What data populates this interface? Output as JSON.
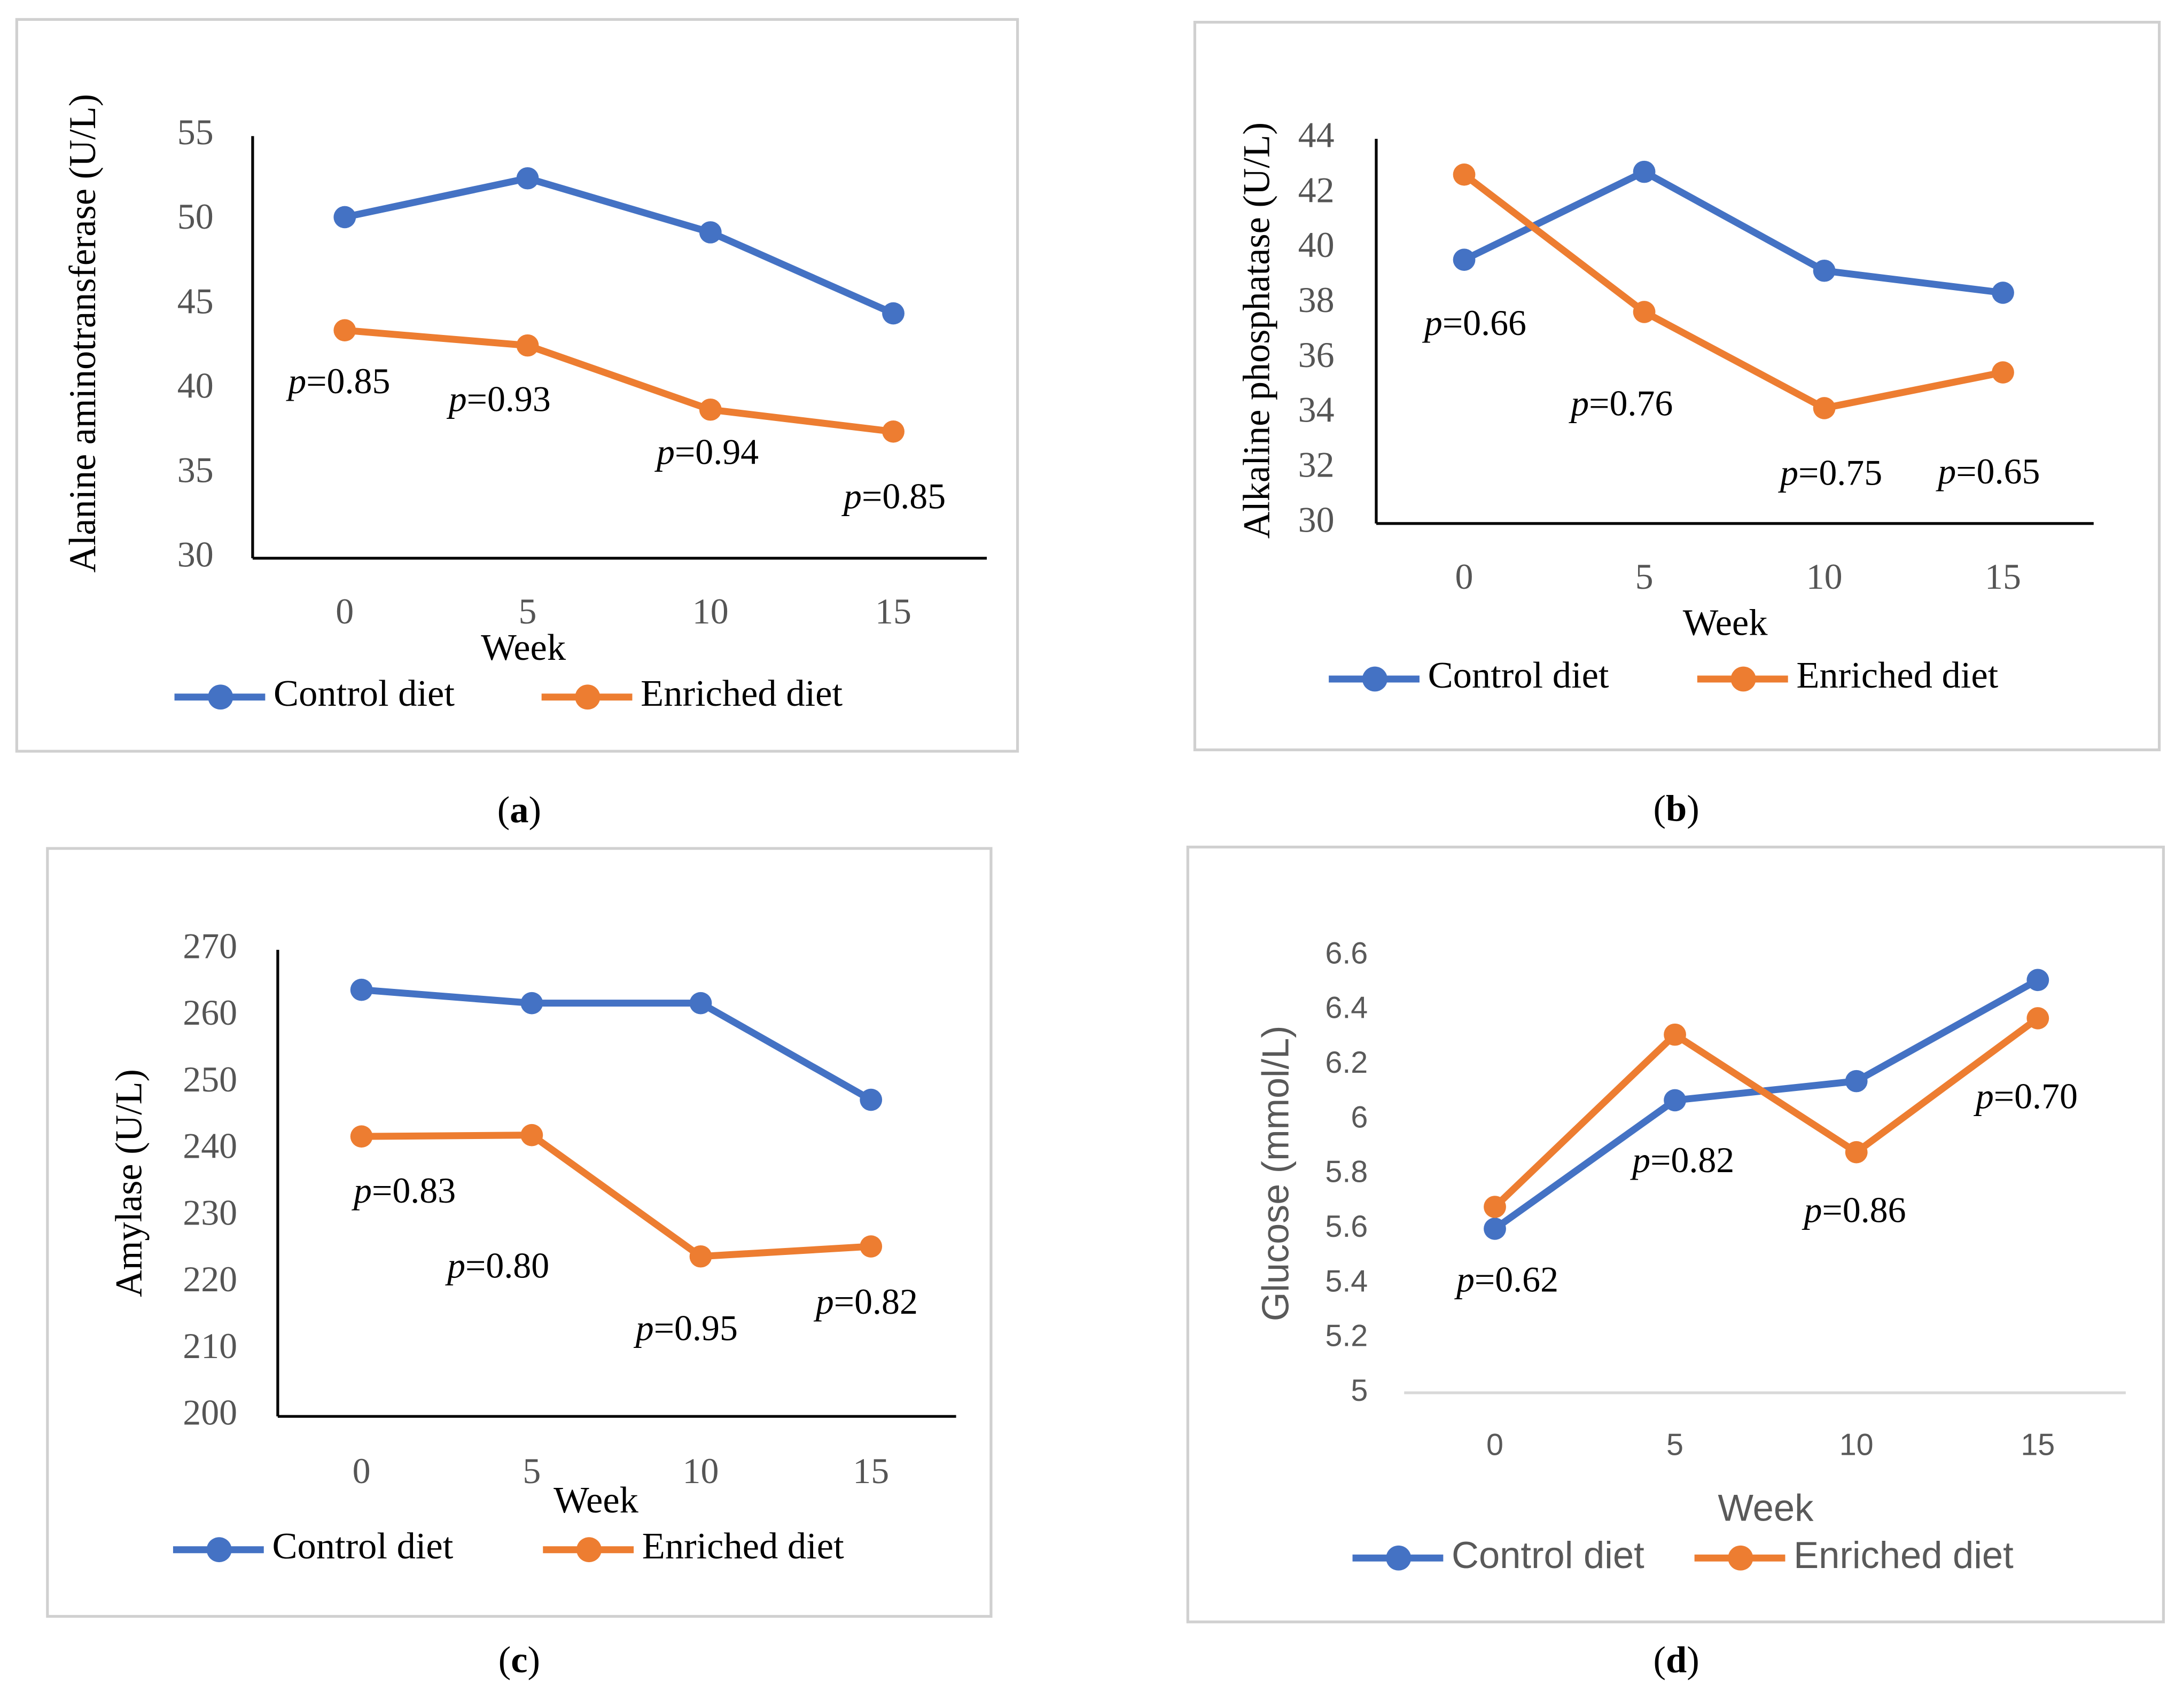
{
  "chart_data": [
    {
      "type": "line",
      "panel_label": "(a)",
      "x_label": "Week",
      "y_label": "Alanine aminotransferase (U/L)",
      "categories": [
        "0",
        "5",
        "10",
        "15"
      ],
      "series": [
        {
          "name": "Control diet",
          "color": "#4472c4",
          "values": [
            50.2,
            52.5,
            49.3,
            44.5
          ]
        },
        {
          "name": "Enriched diet",
          "color": "#ed7d31",
          "values": [
            43.5,
            42.6,
            38.8,
            37.5
          ]
        }
      ],
      "ylim": [
        30,
        55
      ],
      "yticks": [
        30,
        35,
        40,
        45,
        50,
        55
      ],
      "grid": false,
      "legend": "bottom",
      "annotations": [
        "p=0.85",
        "p=0.93",
        "p=0.94",
        "p=0.85"
      ]
    },
    {
      "type": "line",
      "panel_label": "(b)",
      "x_label": "Week",
      "y_label": "Alkaline phosphatase (U/L)",
      "categories": [
        "0",
        "5",
        "10",
        "15"
      ],
      "series": [
        {
          "name": "Control diet",
          "color": "#4472c4",
          "values": [
            39.6,
            42.8,
            39.2,
            38.4
          ]
        },
        {
          "name": "Enriched diet",
          "color": "#ed7d31",
          "values": [
            42.7,
            37.7,
            34.2,
            35.5
          ]
        }
      ],
      "ylim": [
        30,
        44
      ],
      "yticks": [
        30,
        32,
        34,
        36,
        38,
        40,
        42,
        44
      ],
      "grid": false,
      "legend": "bottom",
      "annotations": [
        "p=0.66",
        "p=0.76",
        "p=0.75",
        "p=0.65"
      ]
    },
    {
      "type": "line",
      "panel_label": "(c)",
      "x_label": "Week",
      "y_label": "Amylase (U/L)",
      "categories": [
        "0",
        "5",
        "10",
        "15"
      ],
      "series": [
        {
          "name": "Control diet",
          "color": "#4472c4",
          "values": [
            264,
            262,
            262,
            247.5
          ]
        },
        {
          "name": "Enriched diet",
          "color": "#ed7d31",
          "values": [
            242,
            242.2,
            224,
            225.5
          ]
        }
      ],
      "ylim": [
        200,
        270
      ],
      "yticks": [
        200,
        210,
        220,
        230,
        240,
        250,
        260,
        270
      ],
      "grid": false,
      "legend": "bottom",
      "annotations": [
        "p=0.83",
        "p=0.80",
        "p=0.95",
        "p=0.82"
      ]
    },
    {
      "type": "line",
      "panel_label": "(d)",
      "x_label": "Week",
      "y_label": "Glucose (mmol/L)",
      "categories": [
        "0",
        "5",
        "10",
        "15"
      ],
      "series": [
        {
          "name": "Control diet",
          "color": "#4472c4",
          "values": [
            5.6,
            6.07,
            6.14,
            6.51
          ]
        },
        {
          "name": "Enriched diet",
          "color": "#ed7d31",
          "values": [
            5.68,
            6.31,
            5.88,
            6.37
          ]
        }
      ],
      "ylim": [
        5,
        6.6
      ],
      "yticks": [
        5,
        5.2,
        5.4,
        5.6,
        5.8,
        6,
        6.2,
        6.4,
        6.6
      ],
      "grid": false,
      "legend": "bottom",
      "annotations": [
        "p=0.62",
        "p=0.82",
        "p=0.86",
        "p=0.70"
      ]
    }
  ]
}
